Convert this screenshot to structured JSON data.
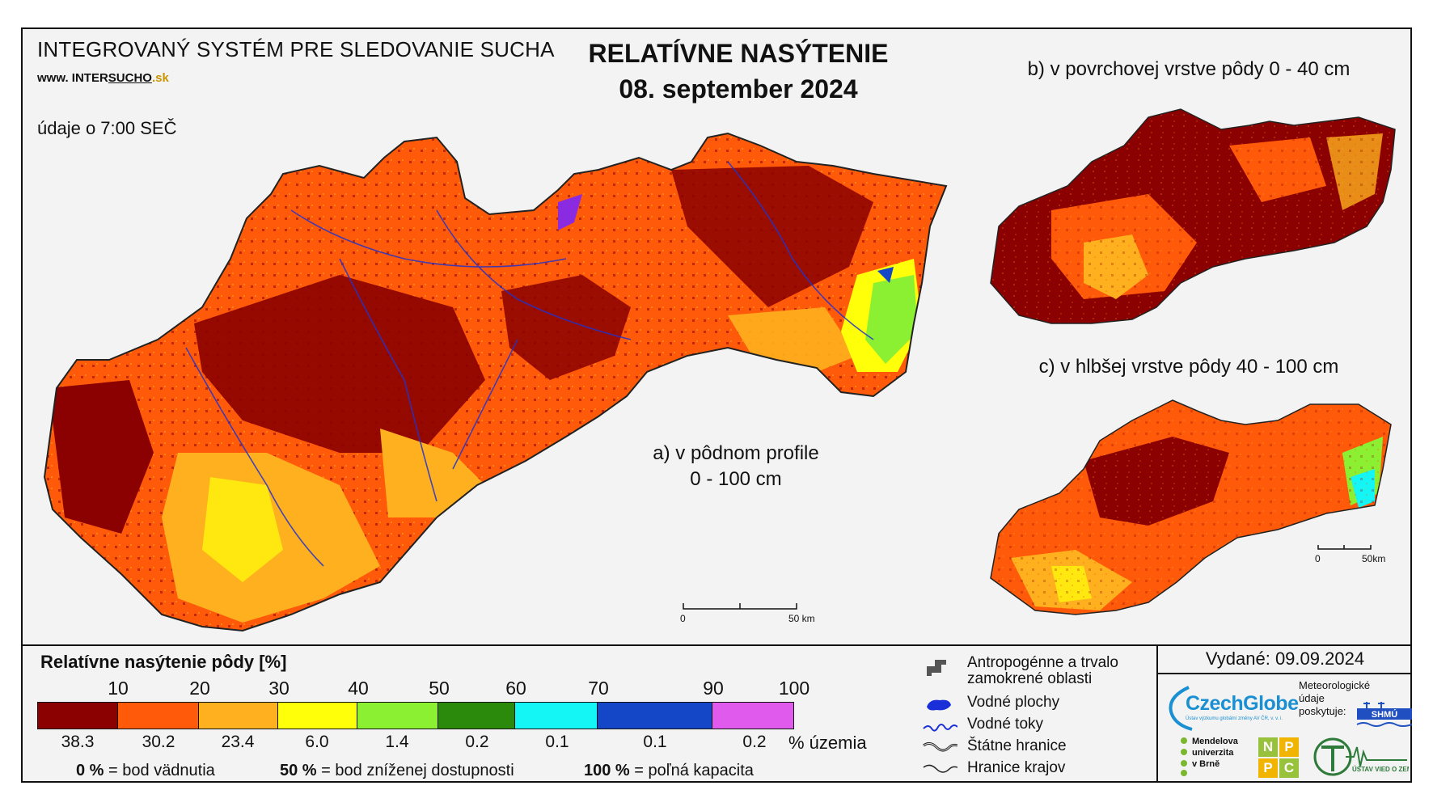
{
  "header": {
    "system_title": "INTEGROVANÝ SYSTÉM PRE SLEDOVANIE SUCHA",
    "web_prefix": "www.",
    "web_mid": "INTER",
    "web_brand": "SUCHO",
    "web_suffix": ".sk",
    "data_time": "údaje o 7:00 SEČ",
    "main_title": "RELATÍVNE NASÝTENIE",
    "main_date": "08. september 2024"
  },
  "maps": {
    "a_label_line1": "a) v pôdnom profile",
    "a_label_line2": "0 - 100 cm",
    "b_label": "b) v povrchovej vrstve pôdy 0 - 40 cm",
    "c_label": "c) v hlbšej vrstve pôdy 40 - 100 cm",
    "scale_main": {
      "start": "0",
      "end": "50 km"
    },
    "scale_small": {
      "start": "0",
      "end": "50km"
    }
  },
  "legend": {
    "title": "Relatívne nasýtenie pôdy [%]",
    "ticks": [
      "10",
      "20",
      "30",
      "40",
      "50",
      "60",
      "70",
      "90",
      "100"
    ],
    "classes": [
      {
        "color": "#8b0000",
        "percent_area": "38.3"
      },
      {
        "color": "#ff5a0a",
        "percent_area": "30.2"
      },
      {
        "color": "#ffb01e",
        "percent_area": "23.4"
      },
      {
        "color": "#ffff0a",
        "percent_area": "6.0"
      },
      {
        "color": "#8cf032",
        "percent_area": "1.4"
      },
      {
        "color": "#2b8a0c",
        "percent_area": "0.2"
      },
      {
        "color": "#14f5f5",
        "percent_area": "0.1"
      },
      {
        "color": "#1446c8",
        "percent_area": "0.1"
      },
      {
        "color": "#e15aee",
        "percent_area": "0.2"
      }
    ],
    "percent_unit": "% územia",
    "def_0_value": "0 %",
    "def_0_text": " = bod vädnutia",
    "def_50_value": "50 %",
    "def_50_text": " = bod zníženej dostupnosti",
    "def_100_value": "100 %",
    "def_100_text": " = poľná kapacita"
  },
  "layers": {
    "anthropogenic": "Antropogénne a trvalo zamokrené oblasti",
    "water_bodies": "Vodné plochy",
    "rivers": "Vodné toky",
    "state_border": "Štátne hranice",
    "region_border": "Hranice krajov"
  },
  "footer": {
    "issued": "Vydané: 09.09.2024",
    "czechglobe": "CzechGlobe",
    "czechglobe_sub": "Ústav výzkumu globální změny AV ČR, v. v. i.",
    "meteo_line1": "Meteorologické",
    "meteo_line2": "údaje",
    "meteo_line3": "poskytuje:",
    "shmu": "SHMÚ",
    "mendel_line1": "Mendelova",
    "mendel_line2": "univerzita",
    "mendel_line3": "v Brně",
    "npcp": [
      "N",
      "P",
      "P",
      "C"
    ],
    "uvz": "ÚSTAV VIED O ZEMI"
  }
}
